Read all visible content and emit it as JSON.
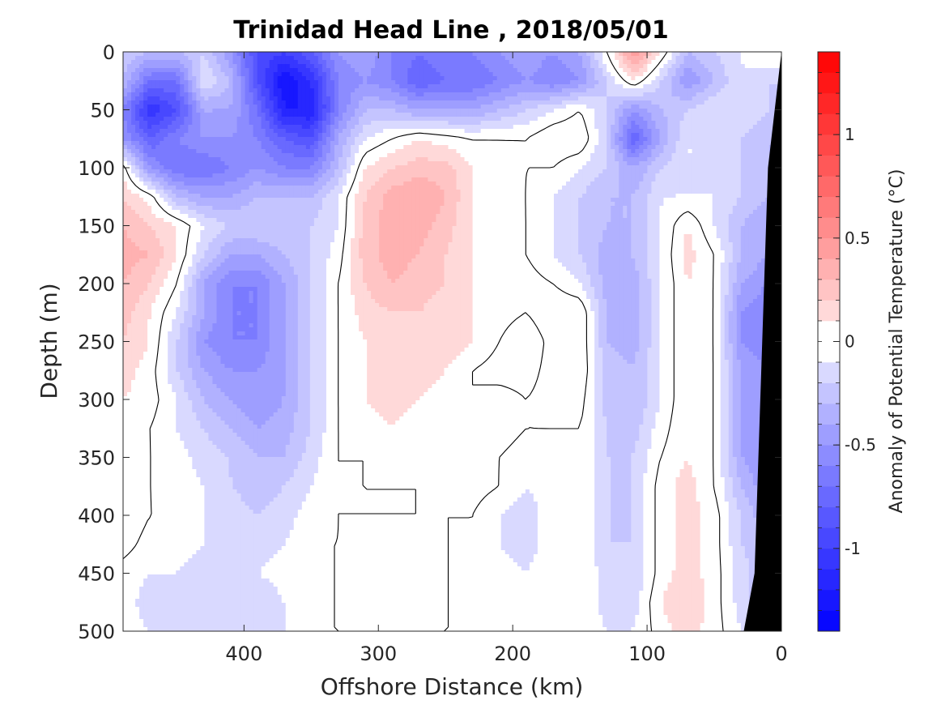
{
  "chart_data": {
    "type": "heatmap",
    "title": "Trinidad Head Line , 2018/05/01",
    "xlabel": "Offshore Distance (km)",
    "ylabel": "Depth (m)",
    "xlim": [
      490,
      0
    ],
    "ylim": [
      0,
      500
    ],
    "x_ticks": [
      400,
      300,
      200,
      100,
      0
    ],
    "y_ticks": [
      0,
      50,
      100,
      150,
      200,
      250,
      300,
      350,
      400,
      450,
      500
    ],
    "colorbar": {
      "label": "Anomaly of Potential Temperature (°C)",
      "range": [
        -1.4,
        1.4
      ],
      "ticks": [
        1,
        0.5,
        0,
        -0.5,
        -1
      ],
      "tick_labels": [
        "1",
        "0.5",
        "0",
        "-0.5",
        "-1"
      ],
      "level_step": 0.1,
      "color_low": "#0000ff",
      "color_mid": "#ffffff",
      "color_high": "#ff0000"
    },
    "bathymetry_color": "#000000",
    "contour_level": 0,
    "z_x": [
      490,
      470,
      450,
      430,
      410,
      390,
      370,
      350,
      330,
      310,
      290,
      270,
      250,
      230,
      210,
      190,
      170,
      150,
      130,
      110,
      90,
      70,
      50,
      30,
      10
    ],
    "z_y": [
      0,
      25,
      50,
      75,
      100,
      125,
      150,
      175,
      200,
      225,
      250,
      275,
      300,
      325,
      350,
      375,
      400,
      425,
      450,
      475,
      500
    ],
    "z": [
      [
        -0.2,
        -0.3,
        -0.3,
        -0.2,
        -0.5,
        -0.9,
        -1.0,
        -0.8,
        -0.5,
        -0.4,
        -0.6,
        -0.7,
        -0.6,
        -0.6,
        -0.5,
        -0.4,
        -0.5,
        -0.4,
        0.0,
        0.5,
        0.1,
        -0.3,
        -0.2,
        -0.1,
        0.0
      ],
      [
        -0.3,
        -0.7,
        -0.7,
        -0.1,
        -0.3,
        -0.9,
        -1.3,
        -1.1,
        -0.6,
        -0.5,
        -0.6,
        -0.8,
        -0.7,
        -0.7,
        -0.6,
        -0.5,
        -0.6,
        -0.5,
        -0.2,
        0.1,
        -0.2,
        -0.5,
        -0.3,
        -0.1,
        -0.2
      ],
      [
        -0.6,
        -1.1,
        -0.9,
        -0.4,
        -0.4,
        -0.7,
        -1.2,
        -1.2,
        -0.6,
        -0.3,
        -0.3,
        -0.4,
        -0.4,
        -0.4,
        -0.3,
        -0.2,
        -0.1,
        0.0,
        -0.2,
        -0.5,
        -0.3,
        -0.2,
        -0.1,
        -0.1,
        -0.2
      ],
      [
        -0.5,
        -0.8,
        -0.6,
        -0.5,
        -0.5,
        -0.6,
        -0.8,
        -0.9,
        -0.4,
        -0.1,
        0.0,
        0.1,
        0.05,
        0.0,
        0.0,
        0.0,
        0.1,
        0.1,
        -0.2,
        -0.8,
        -0.4,
        -0.1,
        -0.1,
        -0.2,
        -0.3
      ],
      [
        0.05,
        -0.5,
        -0.7,
        -0.7,
        -0.6,
        -0.5,
        -0.6,
        -0.6,
        -0.3,
        0.1,
        0.2,
        0.25,
        0.25,
        0.1,
        0.05,
        0.0,
        0.0,
        -0.1,
        -0.2,
        -0.4,
        -0.2,
        -0.1,
        -0.1,
        -0.2,
        -0.3
      ],
      [
        0.2,
        0.05,
        -0.3,
        -0.4,
        -0.4,
        -0.3,
        -0.3,
        -0.3,
        -0.1,
        0.2,
        0.35,
        0.4,
        0.3,
        0.1,
        0.0,
        0.0,
        -0.1,
        -0.2,
        -0.3,
        -0.3,
        -0.1,
        -0.1,
        -0.1,
        -0.2,
        -0.3
      ],
      [
        0.3,
        0.2,
        0.1,
        -0.1,
        -0.2,
        -0.2,
        -0.2,
        -0.2,
        -0.1,
        0.25,
        0.35,
        0.35,
        0.25,
        0.1,
        0.05,
        0.0,
        -0.1,
        -0.2,
        -0.3,
        -0.3,
        -0.1,
        0.1,
        -0.1,
        -0.3,
        -0.4
      ],
      [
        0.35,
        0.3,
        0.1,
        -0.2,
        -0.4,
        -0.4,
        -0.3,
        -0.2,
        -0.05,
        0.25,
        0.35,
        0.3,
        0.2,
        0.1,
        0.05,
        0.0,
        -0.1,
        -0.2,
        -0.35,
        -0.3,
        -0.1,
        0.15,
        0.0,
        -0.3,
        -0.4
      ],
      [
        0.3,
        0.2,
        0.0,
        -0.4,
        -0.6,
        -0.6,
        -0.4,
        -0.2,
        0.0,
        0.2,
        0.3,
        0.25,
        0.2,
        0.1,
        0.05,
        0.05,
        0.0,
        -0.1,
        -0.35,
        -0.35,
        -0.1,
        0.1,
        0.0,
        -0.4,
        -0.5
      ],
      [
        0.25,
        0.1,
        -0.1,
        -0.4,
        -0.6,
        -0.6,
        -0.4,
        -0.2,
        0.0,
        0.15,
        0.2,
        0.2,
        0.15,
        0.1,
        0.05,
        0.0,
        0.1,
        0.1,
        -0.3,
        -0.35,
        -0.1,
        0.1,
        0.0,
        -0.5,
        -0.6
      ],
      [
        0.2,
        0.1,
        -0.2,
        -0.5,
        -0.6,
        -0.6,
        -0.4,
        -0.2,
        0.0,
        0.1,
        0.15,
        0.15,
        0.2,
        0.1,
        0.0,
        -0.1,
        0.05,
        0.1,
        -0.3,
        -0.35,
        -0.1,
        0.1,
        0.0,
        -0.5,
        -0.6
      ],
      [
        0.15,
        0.05,
        -0.2,
        -0.4,
        -0.5,
        -0.5,
        -0.4,
        -0.2,
        0.0,
        0.1,
        0.15,
        0.15,
        0.1,
        0.0,
        -0.05,
        -0.05,
        0.05,
        0.1,
        -0.25,
        -0.3,
        -0.1,
        0.1,
        0.0,
        -0.4,
        -0.5
      ],
      [
        0.1,
        0.05,
        -0.1,
        -0.3,
        -0.4,
        -0.5,
        -0.4,
        -0.2,
        0.0,
        0.1,
        0.15,
        0.1,
        0.05,
        0.0,
        0.05,
        0.0,
        0.05,
        0.05,
        -0.25,
        -0.3,
        -0.1,
        0.1,
        0.0,
        -0.4,
        -0.5
      ],
      [
        0.1,
        0.0,
        -0.1,
        -0.2,
        -0.3,
        -0.4,
        -0.35,
        -0.2,
        0.0,
        0.05,
        0.1,
        0.05,
        0.05,
        0.05,
        0.05,
        0.0,
        0.0,
        0.0,
        -0.2,
        -0.25,
        -0.05,
        0.1,
        0.0,
        -0.4,
        -0.5
      ],
      [
        0.1,
        0.0,
        -0.05,
        -0.15,
        -0.2,
        -0.3,
        -0.3,
        -0.15,
        0.0,
        0.0,
        0.05,
        0.05,
        0.1,
        0.05,
        0.0,
        -0.05,
        0.0,
        0.0,
        -0.2,
        -0.2,
        0.0,
        0.1,
        0.0,
        -0.4,
        -0.5
      ],
      [
        0.1,
        0.0,
        -0.05,
        -0.1,
        -0.2,
        -0.25,
        -0.2,
        -0.1,
        0.0,
        0.0,
        0.0,
        0.0,
        0.05,
        0.05,
        0.0,
        -0.1,
        -0.05,
        0.0,
        -0.2,
        -0.2,
        0.05,
        0.15,
        0.0,
        -0.3,
        -0.5
      ],
      [
        0.1,
        0.0,
        0.0,
        -0.1,
        -0.15,
        -0.2,
        -0.15,
        -0.05,
        0.0,
        0.0,
        0.0,
        0.0,
        0.0,
        0.0,
        -0.1,
        -0.15,
        -0.05,
        0.0,
        -0.2,
        -0.2,
        0.05,
        0.15,
        0.05,
        -0.2,
        -0.4
      ],
      [
        0.05,
        -0.05,
        -0.05,
        -0.1,
        -0.1,
        -0.15,
        -0.1,
        0.0,
        0.0,
        0.05,
        0.1,
        0.05,
        0.0,
        0.0,
        -0.1,
        -0.15,
        -0.05,
        0.0,
        -0.2,
        -0.2,
        0.05,
        0.15,
        0.05,
        -0.2,
        -0.3
      ],
      [
        -0.05,
        -0.1,
        -0.1,
        -0.15,
        -0.15,
        -0.1,
        -0.05,
        0.0,
        0.0,
        0.05,
        0.1,
        0.05,
        0.0,
        0.0,
        -0.05,
        -0.1,
        0.0,
        0.0,
        -0.15,
        -0.2,
        0.05,
        0.15,
        0.05,
        -0.15,
        -0.3
      ],
      [
        -0.05,
        -0.15,
        -0.15,
        -0.15,
        -0.2,
        -0.2,
        -0.1,
        0.0,
        0.0,
        0.05,
        0.1,
        0.05,
        0.0,
        0.0,
        -0.05,
        -0.05,
        0.0,
        0.0,
        -0.15,
        -0.15,
        0.1,
        0.2,
        0.05,
        -0.15,
        -0.3
      ],
      [
        -0.05,
        -0.1,
        -0.1,
        -0.15,
        -0.2,
        -0.15,
        -0.1,
        0.0,
        0.0,
        0.0,
        0.05,
        0.0,
        0.0,
        0.0,
        -0.05,
        -0.05,
        0.0,
        0.0,
        -0.1,
        -0.1,
        0.05,
        0.15,
        0.05,
        -0.1,
        -0.2
      ]
    ],
    "bathymetry_depth": [
      [
        0,
        0
      ],
      [
        10,
        100
      ],
      [
        20,
        450
      ],
      [
        28,
        500
      ]
    ]
  }
}
